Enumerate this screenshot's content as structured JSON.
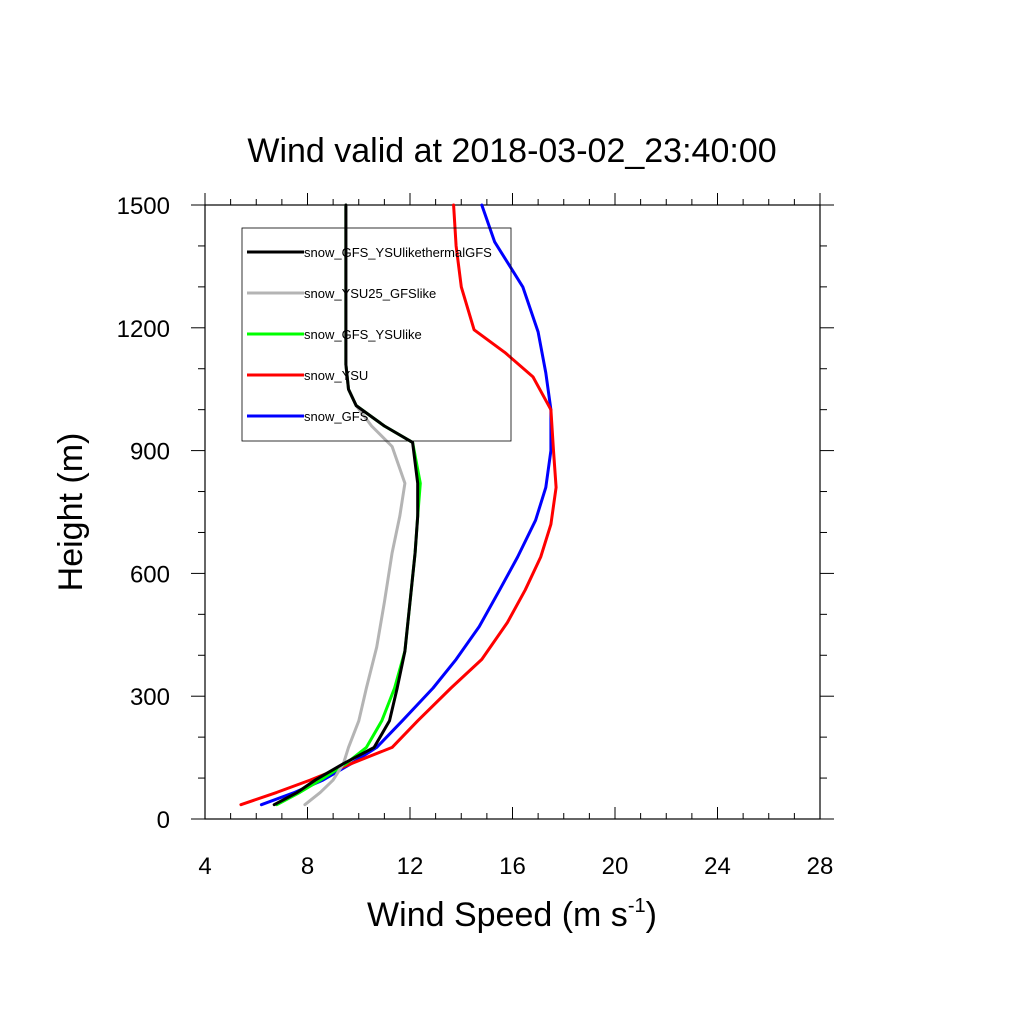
{
  "chart_data": {
    "type": "line",
    "title": "Wind valid at 2018-03-02_23:40:00",
    "xlabel": "Wind Speed (m s",
    "xlabel_sup": "-1",
    "xlabel_tail": ")",
    "ylabel": "Height (m)",
    "xlim": [
      4,
      28
    ],
    "ylim": [
      0,
      1500
    ],
    "xticks": [
      4,
      8,
      12,
      16,
      20,
      24,
      28
    ],
    "yticks": [
      0,
      300,
      600,
      900,
      1200,
      1500
    ],
    "grid": false,
    "legend_position": "top-left",
    "series": [
      {
        "name": "snow_GFS_YSUlikethermalGFS",
        "color": "#000000",
        "points": [
          [
            6.7,
            35
          ],
          [
            7.6,
            65
          ],
          [
            8.3,
            95
          ],
          [
            9.4,
            135
          ],
          [
            10.6,
            175
          ],
          [
            11.2,
            240
          ],
          [
            11.5,
            320
          ],
          [
            11.8,
            410
          ],
          [
            12.0,
            530
          ],
          [
            12.2,
            650
          ],
          [
            12.3,
            740
          ],
          [
            12.3,
            820
          ],
          [
            12.1,
            920
          ],
          [
            11.0,
            960
          ],
          [
            9.9,
            1010
          ],
          [
            9.6,
            1050
          ],
          [
            9.5,
            1110
          ],
          [
            9.5,
            1200
          ],
          [
            9.5,
            1300
          ],
          [
            9.5,
            1500
          ]
        ]
      },
      {
        "name": "snow_YSU25_GFSlike",
        "color": "#b4b4b4",
        "points": [
          [
            7.9,
            35
          ],
          [
            8.5,
            65
          ],
          [
            9.0,
            95
          ],
          [
            9.4,
            135
          ],
          [
            9.6,
            175
          ],
          [
            10.0,
            240
          ],
          [
            10.3,
            320
          ],
          [
            10.7,
            420
          ],
          [
            11.0,
            530
          ],
          [
            11.3,
            650
          ],
          [
            11.6,
            740
          ],
          [
            11.8,
            820
          ],
          [
            11.3,
            910
          ],
          [
            10.5,
            960
          ],
          [
            9.9,
            1010
          ],
          [
            9.6,
            1050
          ],
          [
            9.5,
            1110
          ],
          [
            9.5,
            1200
          ],
          [
            9.5,
            1300
          ],
          [
            9.5,
            1500
          ]
        ]
      },
      {
        "name": "snow_GFS_YSUlike",
        "color": "#00ff00",
        "points": [
          [
            6.8,
            35
          ],
          [
            7.7,
            65
          ],
          [
            8.5,
            95
          ],
          [
            9.5,
            135
          ],
          [
            10.3,
            175
          ],
          [
            10.9,
            240
          ],
          [
            11.4,
            320
          ],
          [
            11.8,
            410
          ],
          [
            12.0,
            530
          ],
          [
            12.2,
            650
          ],
          [
            12.3,
            740
          ],
          [
            12.4,
            820
          ],
          [
            12.1,
            920
          ],
          [
            11.0,
            960
          ],
          [
            9.9,
            1010
          ],
          [
            9.6,
            1050
          ],
          [
            9.5,
            1110
          ],
          [
            9.5,
            1200
          ],
          [
            9.5,
            1300
          ],
          [
            9.5,
            1500
          ]
        ]
      },
      {
        "name": "snow_YSU",
        "color": "#ff0000",
        "points": [
          [
            5.4,
            35
          ],
          [
            6.8,
            65
          ],
          [
            8.1,
            95
          ],
          [
            9.7,
            135
          ],
          [
            11.3,
            175
          ],
          [
            12.3,
            240
          ],
          [
            13.6,
            320
          ],
          [
            14.8,
            390
          ],
          [
            15.8,
            480
          ],
          [
            16.5,
            560
          ],
          [
            17.1,
            640
          ],
          [
            17.5,
            720
          ],
          [
            17.7,
            810
          ],
          [
            17.6,
            900
          ],
          [
            17.5,
            1000
          ],
          [
            16.8,
            1080
          ],
          [
            15.7,
            1140
          ],
          [
            14.5,
            1195
          ],
          [
            14.0,
            1300
          ],
          [
            13.8,
            1400
          ],
          [
            13.7,
            1500
          ]
        ]
      },
      {
        "name": "snow_GFS",
        "color": "#0000ff",
        "points": [
          [
            6.2,
            35
          ],
          [
            7.5,
            65
          ],
          [
            8.6,
            95
          ],
          [
            9.7,
            135
          ],
          [
            10.7,
            175
          ],
          [
            11.7,
            240
          ],
          [
            12.9,
            320
          ],
          [
            13.8,
            390
          ],
          [
            14.7,
            470
          ],
          [
            15.5,
            560
          ],
          [
            16.2,
            640
          ],
          [
            16.9,
            730
          ],
          [
            17.3,
            810
          ],
          [
            17.5,
            900
          ],
          [
            17.5,
            1000
          ],
          [
            17.3,
            1090
          ],
          [
            17.0,
            1190
          ],
          [
            16.4,
            1300
          ],
          [
            15.3,
            1410
          ],
          [
            14.8,
            1500
          ]
        ]
      }
    ]
  }
}
